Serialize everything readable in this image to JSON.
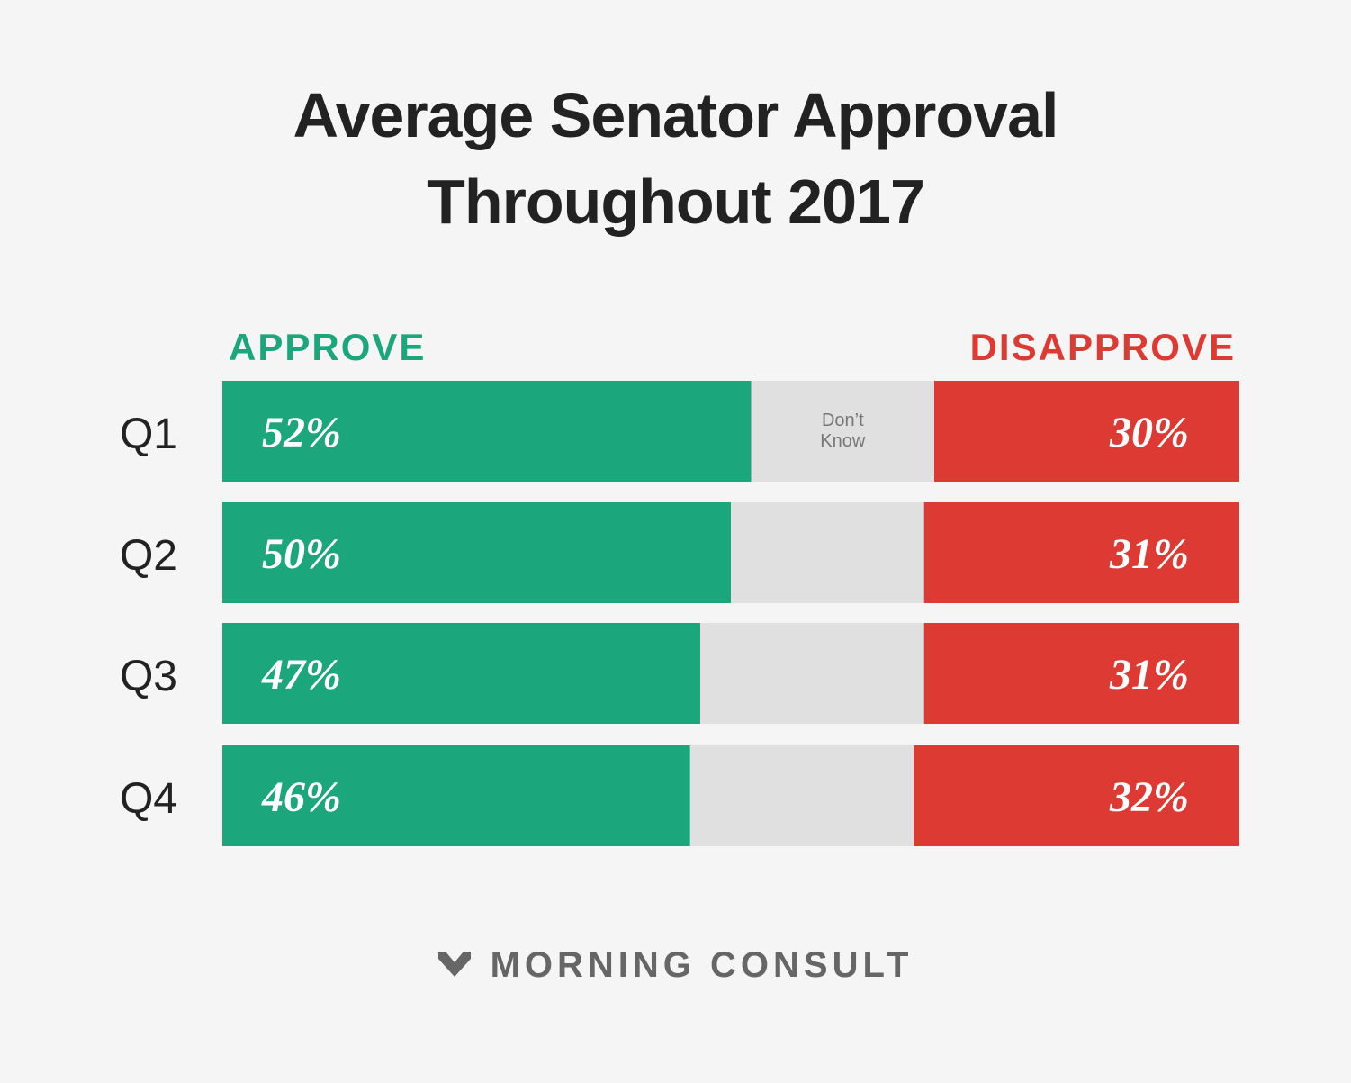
{
  "title_lines": [
    "Average Senator Approval",
    "Throughout 2017"
  ],
  "legend": {
    "approve": "APPROVE",
    "disapprove": "DISAPPROVE"
  },
  "colors": {
    "approve": "#1ba67b",
    "dont_know": "#e0e0e0",
    "disapprove": "#dc3a33",
    "title": "#222222",
    "category": "#222222",
    "dont_know_text": "#777777"
  },
  "chart_data": {
    "type": "bar",
    "orientation": "horizontal",
    "stacked": true,
    "categories": [
      "Q1",
      "Q2",
      "Q3",
      "Q4"
    ],
    "series": [
      {
        "name": "APPROVE",
        "values": [
          52,
          50,
          47,
          46
        ],
        "labels": [
          "52%",
          "50%",
          "47%",
          "46%"
        ]
      },
      {
        "name": "Don’t Know",
        "values": [
          18,
          19,
          22,
          22
        ]
      },
      {
        "name": "DISAPPROVE",
        "values": [
          30,
          31,
          31,
          32
        ],
        "labels": [
          "30%",
          "31%",
          "31%",
          "32%"
        ]
      }
    ],
    "dont_know_label": [
      "Don’t",
      "Know"
    ],
    "xlim": [
      0,
      100
    ]
  },
  "footer": {
    "brand": "MORNING CONSULT",
    "logo_icon": "morning-consult-chevron-icon"
  }
}
